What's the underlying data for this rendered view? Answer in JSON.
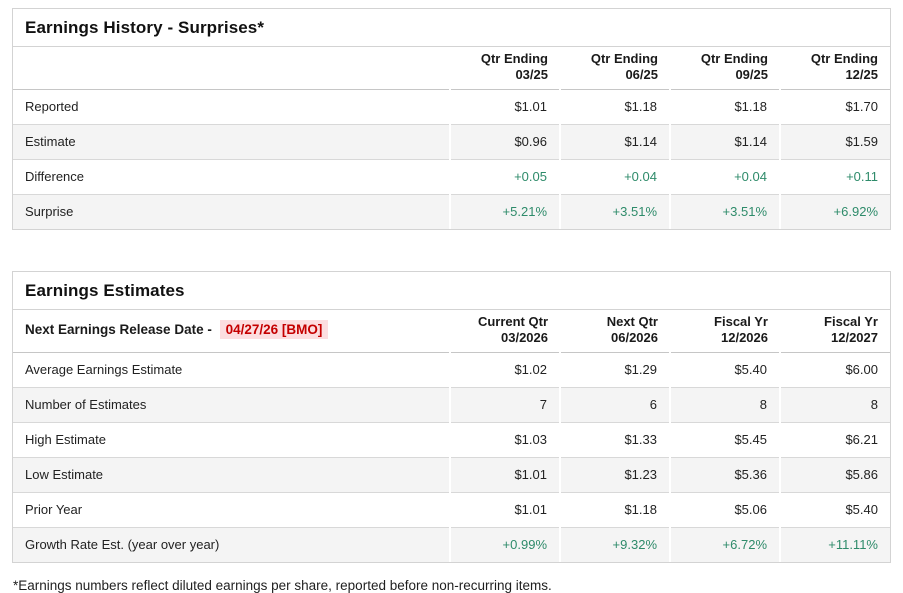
{
  "colors": {
    "positive_green": "#2e8b6a",
    "alert_red": "#c40000",
    "alert_red_background": "#fcdee0",
    "row_alt_background": "#f4f4f4",
    "border_gray": "#d3d3d3"
  },
  "history": {
    "title": "Earnings History - Surprises*",
    "columns": [
      {
        "line1": "Qtr Ending",
        "line2": "03/25"
      },
      {
        "line1": "Qtr Ending",
        "line2": "06/25"
      },
      {
        "line1": "Qtr Ending",
        "line2": "09/25"
      },
      {
        "line1": "Qtr Ending",
        "line2": "12/25"
      }
    ],
    "rows": [
      {
        "label": "Reported",
        "values": [
          "$1.01",
          "$1.18",
          "$1.18",
          "$1.70"
        ]
      },
      {
        "label": "Estimate",
        "values": [
          "$0.96",
          "$1.14",
          "$1.14",
          "$1.59"
        ]
      },
      {
        "label": "Difference",
        "values": [
          "+0.05",
          "+0.04",
          "+0.04",
          "+0.11"
        ]
      },
      {
        "label": "Surprise",
        "values": [
          "+5.21%",
          "+3.51%",
          "+3.51%",
          "+6.92%"
        ]
      }
    ]
  },
  "estimates": {
    "title": "Earnings Estimates",
    "release_date_label": "Next Earnings Release Date - ",
    "release_date_value": "04/27/26 [BMO]",
    "columns": [
      {
        "line1": "Current Qtr",
        "line2": "03/2026"
      },
      {
        "line1": "Next Qtr",
        "line2": "06/2026"
      },
      {
        "line1": "Fiscal Yr",
        "line2": "12/2026"
      },
      {
        "line1": "Fiscal Yr",
        "line2": "12/2027"
      }
    ],
    "rows": [
      {
        "label": "Average Earnings Estimate",
        "values": [
          "$1.02",
          "$1.29",
          "$5.40",
          "$6.00"
        ]
      },
      {
        "label": "Number of Estimates",
        "values": [
          "7",
          "6",
          "8",
          "8"
        ]
      },
      {
        "label": "High Estimate",
        "values": [
          "$1.03",
          "$1.33",
          "$5.45",
          "$6.21"
        ]
      },
      {
        "label": "Low Estimate",
        "values": [
          "$1.01",
          "$1.23",
          "$5.36",
          "$5.86"
        ]
      },
      {
        "label": "Prior Year",
        "values": [
          "$1.01",
          "$1.18",
          "$5.06",
          "$5.40"
        ]
      },
      {
        "label": "Growth Rate Est. (year over year)",
        "values": [
          "+0.99%",
          "+9.32%",
          "+6.72%",
          "+11.11%"
        ]
      }
    ]
  },
  "footnote": "*Earnings numbers reflect diluted earnings per share, reported before non-recurring items."
}
